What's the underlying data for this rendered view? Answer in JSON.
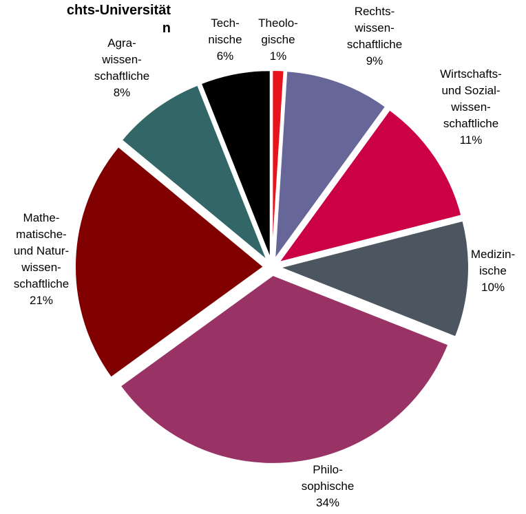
{
  "chart_data": {
    "type": "pie",
    "title": "chts-Universität\nn",
    "slices": [
      {
        "name": "Theolo-\ngische",
        "value": 1,
        "label": "1%",
        "color": "#e8141c"
      },
      {
        "name": "Rechts-\nwissen-\nschaftliche",
        "value": 9,
        "label": "9%",
        "color": "#666699"
      },
      {
        "name": "Wirtschafts-\nund Sozial-\nwissen-\nschaftliche",
        "value": 11,
        "label": "11%",
        "color": "#cc0044"
      },
      {
        "name": "Medizin-\nische",
        "value": 10,
        "label": "10%",
        "color": "#4b5661"
      },
      {
        "name": "Philo-\nsophische",
        "value": 34,
        "label": "34%",
        "color": "#993366"
      },
      {
        "name": "Mathe-\nmatische-\nund Natur-\nwissen-\nschaftliche",
        "value": 21,
        "label": "21%",
        "color": "#800000"
      },
      {
        "name": "Agra-\nwissen-\nschaftliche",
        "value": 8,
        "label": "8%",
        "color": "#336666"
      },
      {
        "name": "Tech-\nnische",
        "value": 6,
        "label": "6%",
        "color": "#000000"
      }
    ],
    "legend": "none"
  }
}
